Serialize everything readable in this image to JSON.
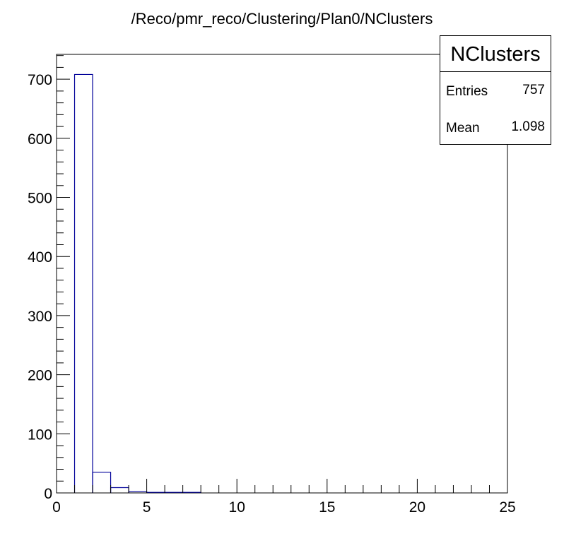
{
  "chart_data": {
    "type": "histogram",
    "title": "/Reco/pmr_reco/Clustering/Plan0/NClusters",
    "xlabel": "",
    "ylabel": "",
    "xlim": [
      0,
      25
    ],
    "ylim": [
      0,
      742
    ],
    "x_ticks": [
      0,
      5,
      10,
      15,
      20,
      25
    ],
    "y_ticks": [
      0,
      100,
      200,
      300,
      400,
      500,
      600,
      700
    ],
    "bin_edges_low": [
      1,
      2,
      3,
      4,
      5,
      6,
      7
    ],
    "bin_width": 1,
    "values": [
      708,
      35,
      9,
      2,
      1,
      1,
      1
    ],
    "line_color": "#000099",
    "grid": false,
    "stats": {
      "name": "NClusters",
      "entries_label": "Entries",
      "entries": "757",
      "mean_label": "Mean",
      "mean": "1.098",
      "placement": "top-right"
    }
  }
}
